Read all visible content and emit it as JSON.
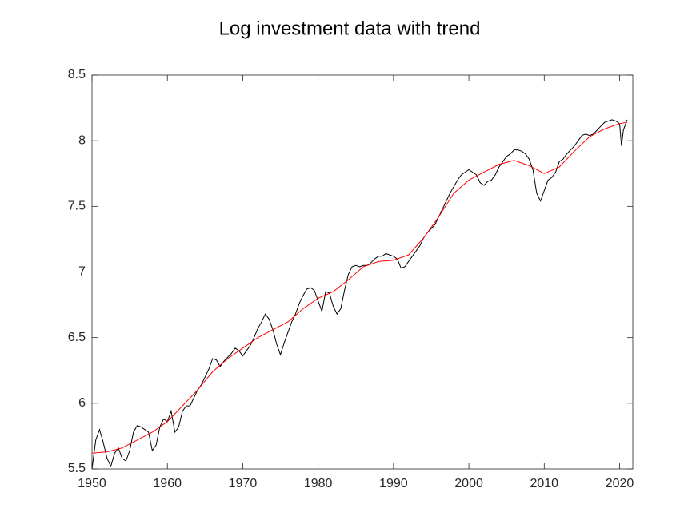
{
  "chart_data": {
    "type": "line",
    "title": "Log investment data with trend",
    "xlim": [
      1950,
      2021.75
    ],
    "xticks": [
      1950,
      1960,
      1970,
      1980,
      1990,
      2000,
      2010,
      2020
    ],
    "ylim": [
      5.5,
      8.5
    ],
    "yticks": [
      5.5,
      6,
      6.5,
      7,
      7.5,
      8,
      8.5
    ],
    "series": [
      {
        "color": "#000000",
        "x": [
          1950,
          1950.5,
          1951,
          1951.5,
          1952,
          1952.5,
          1953,
          1953.5,
          1954,
          1954.5,
          1955,
          1955.5,
          1956,
          1956.5,
          1957,
          1957.5,
          1958,
          1958.5,
          1959,
          1959.5,
          1960,
          1960.5,
          1961,
          1961.5,
          1962,
          1962.5,
          1963,
          1963.5,
          1964,
          1964.5,
          1965,
          1965.5,
          1966,
          1966.5,
          1967,
          1967.5,
          1968,
          1968.5,
          1969,
          1969.5,
          1970,
          1970.5,
          1971,
          1971.5,
          1972,
          1972.5,
          1973,
          1973.5,
          1974,
          1974.5,
          1975,
          1975.5,
          1976,
          1976.5,
          1977,
          1977.5,
          1978,
          1978.5,
          1979,
          1979.5,
          1980,
          1980.5,
          1981,
          1981.5,
          1982,
          1982.5,
          1983,
          1983.5,
          1984,
          1984.5,
          1985,
          1985.5,
          1986,
          1986.5,
          1987,
          1987.5,
          1988,
          1988.5,
          1989,
          1989.5,
          1990,
          1990.5,
          1991,
          1991.5,
          1992,
          1992.5,
          1993,
          1993.5,
          1994,
          1994.5,
          1995,
          1995.5,
          1996,
          1996.5,
          1997,
          1997.5,
          1998,
          1998.5,
          1999,
          1999.5,
          2000,
          2000.5,
          2001,
          2001.5,
          2002,
          2002.5,
          2003,
          2003.5,
          2004,
          2004.5,
          2005,
          2005.5,
          2006,
          2006.5,
          2007,
          2007.5,
          2008,
          2008.5,
          2009,
          2009.5,
          2010,
          2010.5,
          2011,
          2011.5,
          2012,
          2012.5,
          2013,
          2013.5,
          2014,
          2014.5,
          2015,
          2015.5,
          2016,
          2016.5,
          2017,
          2017.5,
          2018,
          2018.5,
          2019,
          2019.5,
          2020,
          2020.25,
          2020.5,
          2021
        ],
        "values": [
          5.5,
          5.72,
          5.8,
          5.7,
          5.58,
          5.52,
          5.62,
          5.66,
          5.58,
          5.56,
          5.64,
          5.78,
          5.83,
          5.82,
          5.8,
          5.78,
          5.64,
          5.68,
          5.82,
          5.88,
          5.86,
          5.94,
          5.78,
          5.82,
          5.94,
          5.98,
          5.98,
          6.04,
          6.1,
          6.14,
          6.2,
          6.26,
          6.34,
          6.33,
          6.28,
          6.32,
          6.35,
          6.38,
          6.42,
          6.4,
          6.36,
          6.4,
          6.44,
          6.5,
          6.57,
          6.62,
          6.68,
          6.64,
          6.56,
          6.45,
          6.37,
          6.46,
          6.54,
          6.62,
          6.68,
          6.76,
          6.82,
          6.87,
          6.88,
          6.86,
          6.78,
          6.7,
          6.85,
          6.84,
          6.74,
          6.68,
          6.72,
          6.86,
          6.98,
          7.04,
          7.05,
          7.04,
          7.05,
          7.05,
          7.07,
          7.1,
          7.12,
          7.12,
          7.14,
          7.13,
          7.12,
          7.1,
          7.03,
          7.04,
          7.08,
          7.12,
          7.16,
          7.2,
          7.26,
          7.3,
          7.33,
          7.36,
          7.42,
          7.48,
          7.54,
          7.6,
          7.65,
          7.7,
          7.74,
          7.76,
          7.78,
          7.76,
          7.74,
          7.68,
          7.66,
          7.69,
          7.7,
          7.74,
          7.8,
          7.84,
          7.88,
          7.9,
          7.93,
          7.93,
          7.92,
          7.9,
          7.86,
          7.78,
          7.6,
          7.54,
          7.62,
          7.7,
          7.72,
          7.76,
          7.84,
          7.86,
          7.9,
          7.93,
          7.96,
          8.0,
          8.04,
          8.05,
          8.04,
          8.05,
          8.08,
          8.11,
          8.14,
          8.15,
          8.16,
          8.15,
          8.13,
          7.96,
          8.08,
          8.16
        ]
      },
      {
        "color": "#ff0000",
        "x": [
          1950,
          1952,
          1954,
          1956,
          1958,
          1960,
          1962,
          1964,
          1966,
          1968,
          1970,
          1972,
          1974,
          1976,
          1978,
          1980,
          1982,
          1984,
          1986,
          1988,
          1990,
          1992,
          1994,
          1996,
          1998,
          2000,
          2002,
          2004,
          2006,
          2008,
          2010,
          2012,
          2014,
          2016,
          2018,
          2020,
          2021
        ],
        "values": [
          5.62,
          5.63,
          5.66,
          5.72,
          5.78,
          5.86,
          5.98,
          6.1,
          6.24,
          6.34,
          6.42,
          6.5,
          6.56,
          6.62,
          6.72,
          6.8,
          6.85,
          6.94,
          7.04,
          7.08,
          7.09,
          7.13,
          7.26,
          7.42,
          7.6,
          7.7,
          7.76,
          7.82,
          7.85,
          7.81,
          7.75,
          7.8,
          7.92,
          8.03,
          8.09,
          8.13,
          8.14
        ]
      }
    ]
  }
}
